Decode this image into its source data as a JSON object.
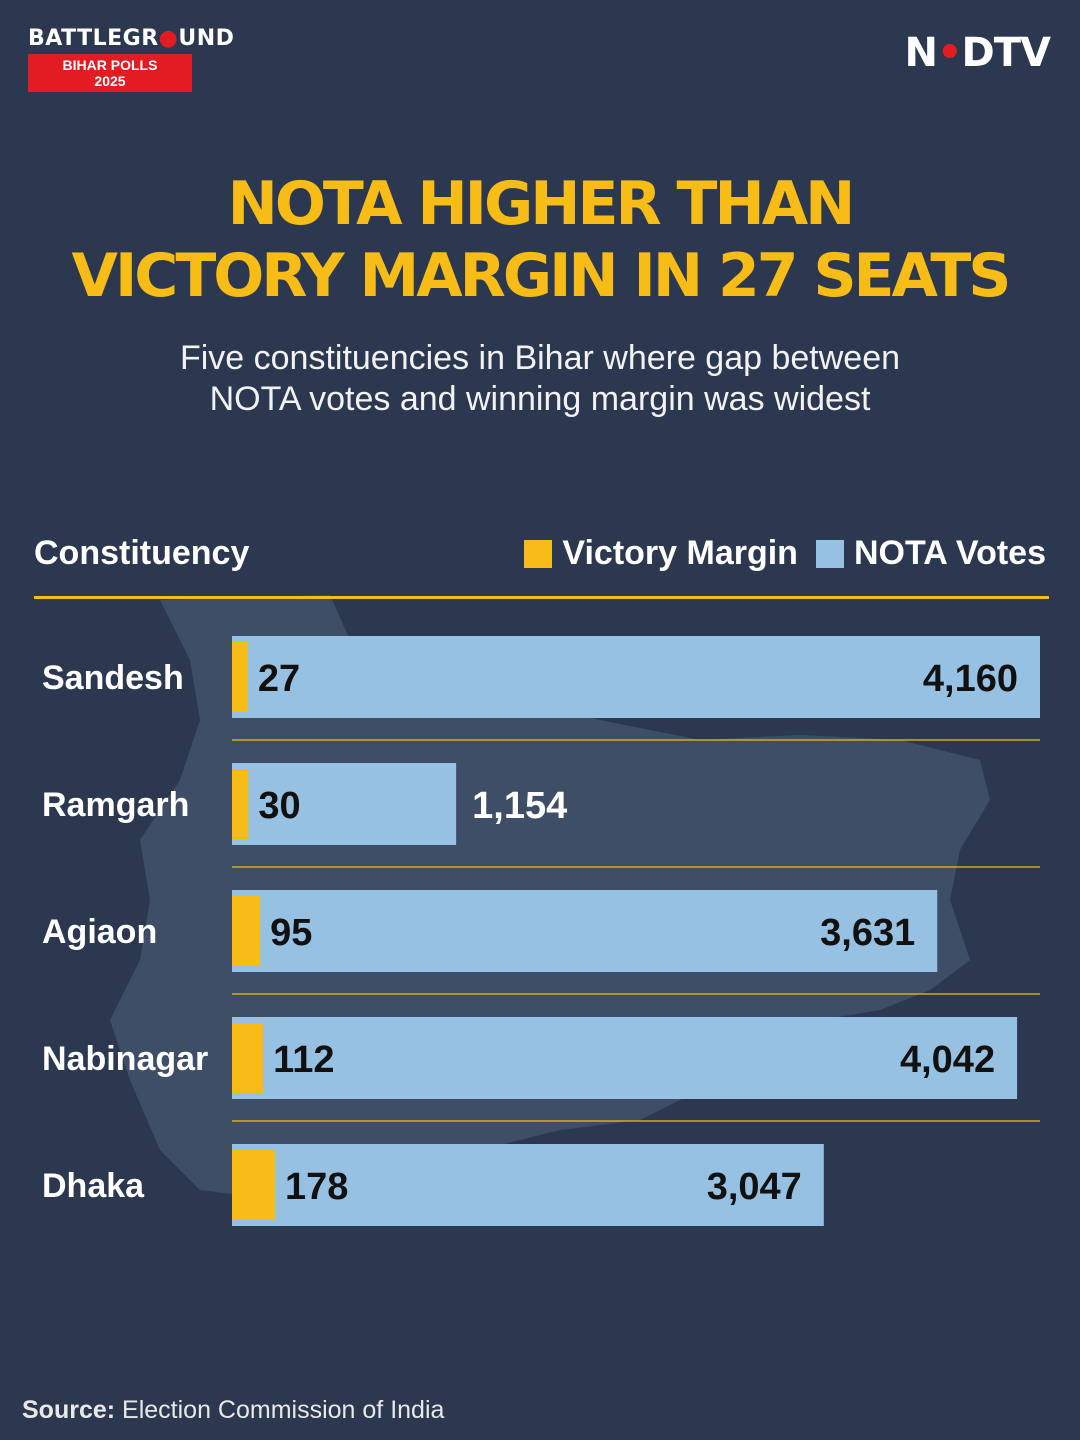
{
  "brand": {
    "word_left": "BATTLEGR",
    "word_pin": "●",
    "word_right": "UND",
    "sub": "BIHAR POLLS 2025"
  },
  "logo": {
    "left": "N",
    "dot": "•",
    "right": "DTV"
  },
  "headline": {
    "line1": "NOTA HIGHER THAN",
    "line2": "VICTORY MARGIN IN 27 SEATS"
  },
  "subtitle": {
    "line1": "Five constituencies in Bihar where gap between",
    "line2": "NOTA votes and winning margin was widest"
  },
  "column_header": "Constituency",
  "legend": [
    {
      "label": "Victory Margin",
      "color": "#f7bd16"
    },
    {
      "label": "NOTA Votes",
      "color": "#97c1e3"
    }
  ],
  "source": {
    "label": "Source:",
    "text": "Election Commission of India"
  },
  "colors": {
    "background": "#2b3850",
    "accent": "#f7bd16",
    "nota": "#97c1e3",
    "brand_red": "#e31b23"
  },
  "chart_data": {
    "type": "bar",
    "orientation": "horizontal",
    "title": "NOTA HIGHER THAN VICTORY MARGIN IN 27 SEATS",
    "categories": [
      "Sandesh",
      "Ramgarh",
      "Agiaon",
      "Nabinagar",
      "Dhaka"
    ],
    "series": [
      {
        "name": "NOTA Votes",
        "values": [
          4160,
          1154,
          3631,
          4042,
          3047
        ],
        "labels": [
          "4,160",
          "1,154",
          "3,631",
          "4,042",
          "3,047"
        ],
        "color": "#97c1e3"
      },
      {
        "name": "Victory Margin",
        "values": [
          27,
          30,
          95,
          112,
          178
        ],
        "labels": [
          "27",
          "30",
          "95",
          "112",
          "178"
        ],
        "color": "#f7bd16"
      }
    ],
    "xlim": [
      0,
      4160
    ],
    "legend_position": "top-right",
    "grid": false
  }
}
